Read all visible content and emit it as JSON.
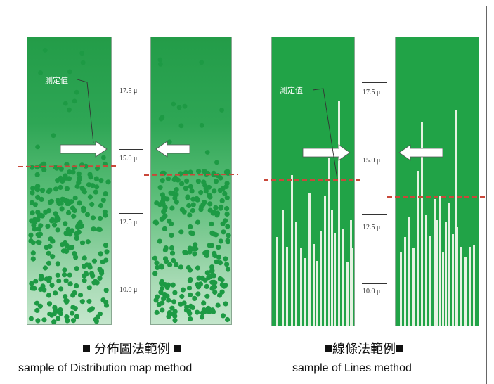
{
  "colors": {
    "green_dark": "#239c48",
    "green_light": "#c4e6cc",
    "dots": "#1d9a44",
    "lines": "#e6f2e2",
    "dashed_line": "#c9483a",
    "arrow": "#ffffff"
  },
  "callout_label": "測定值",
  "scale_labels": [
    "17.5 μ",
    "15.0 μ",
    "12.5 μ",
    "10.0 μ"
  ],
  "panels": {
    "distribution": {
      "title_cjk": "分佈圖法範例",
      "title_en": "sample of Distribution map method"
    },
    "lines": {
      "title_cjk": "線條法範例",
      "title_en": "sample of Lines method"
    }
  }
}
